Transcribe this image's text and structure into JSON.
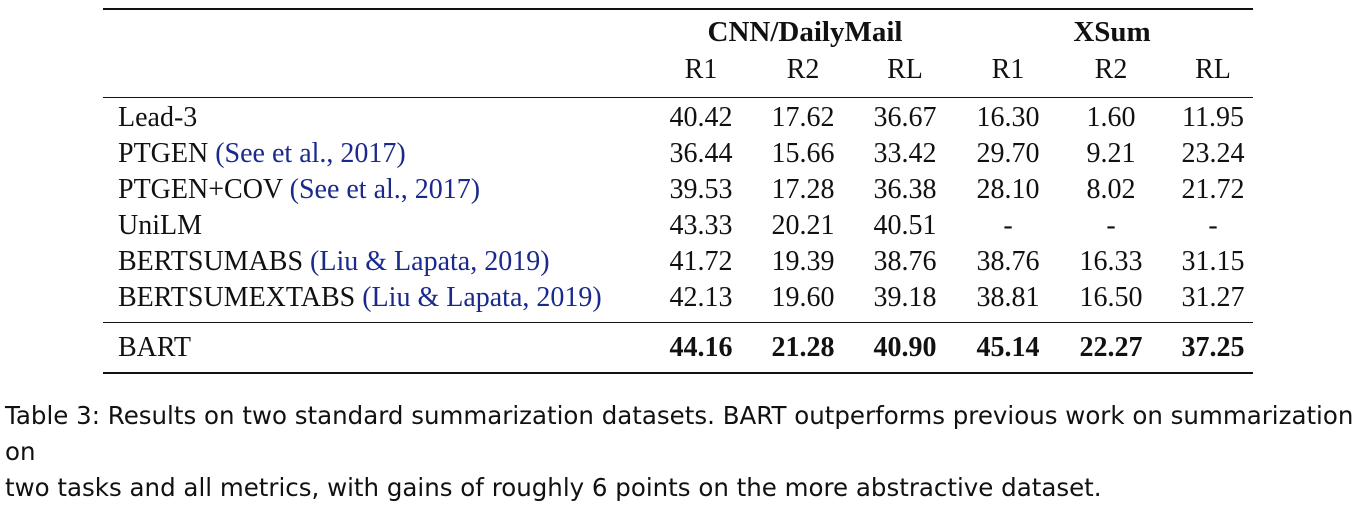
{
  "table": {
    "groups": [
      {
        "label": "CNN/DailyMail"
      },
      {
        "label": "XSum"
      }
    ],
    "metrics": [
      "R1",
      "R2",
      "RL",
      "R1",
      "R2",
      "RL"
    ],
    "rows": [
      {
        "model": "Lead-3",
        "citation": "",
        "values": [
          "40.42",
          "17.62",
          "36.67",
          "16.30",
          "1.60",
          "11.95"
        ]
      },
      {
        "model": "PTGEN",
        "citation": "(See et al., 2017)",
        "values": [
          "36.44",
          "15.66",
          "33.42",
          "29.70",
          "9.21",
          "23.24"
        ]
      },
      {
        "model": "PTGEN+COV",
        "citation": "(See et al., 2017)",
        "values": [
          "39.53",
          "17.28",
          "36.38",
          "28.10",
          "8.02",
          "21.72"
        ]
      },
      {
        "model": "UniLM",
        "citation": "",
        "values": [
          "43.33",
          "20.21",
          "40.51",
          "-",
          "-",
          "-"
        ]
      },
      {
        "model": "BERTSUMABS",
        "citation": "(Liu & Lapata, 2019)",
        "values": [
          "41.72",
          "19.39",
          "38.76",
          "38.76",
          "16.33",
          "31.15"
        ]
      },
      {
        "model": "BERTSUMEXTABS",
        "citation": "(Liu & Lapata, 2019)",
        "values": [
          "42.13",
          "19.60",
          "39.18",
          "38.81",
          "16.50",
          "31.27"
        ]
      }
    ],
    "final_row": {
      "model": "BART",
      "values": [
        "44.16",
        "21.28",
        "40.90",
        "45.14",
        "22.27",
        "37.25"
      ]
    }
  },
  "caption": {
    "line1": "Table 3: Results on two standard summarization datasets. BART outperforms previous work on summarization on",
    "line2": "two tasks and all metrics, with gains of roughly 6 points on the more abstractive dataset."
  },
  "colors": {
    "citation": "#1a2a8c",
    "text": "#111111"
  }
}
